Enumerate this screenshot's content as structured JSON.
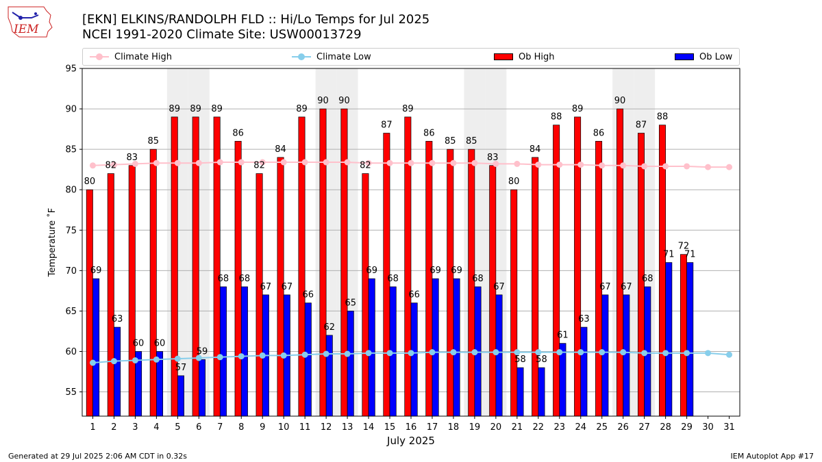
{
  "logo": {
    "icon": "iem-logo-icon",
    "text": "IEM",
    "color": "#cc2222"
  },
  "title": "[EKN] ELKINS/RANDOLPH FLD :: Hi/Lo Temps for Jul 2025",
  "subtitle": "NCEI 1991-2020 Climate Site: USW00013729",
  "legend": {
    "climate_high": "Climate High",
    "climate_low": "Climate Low",
    "ob_high": "Ob High",
    "ob_low": "Ob Low"
  },
  "footer": {
    "left": "Generated at 29 Jul 2025 2:06 AM CDT in 0.32s",
    "right": "IEM Autoplot App #17"
  },
  "chart_data": {
    "type": "bar",
    "title": "[EKN] ELKINS/RANDOLPH FLD :: Hi/Lo Temps for Jul 2025",
    "subtitle": "NCEI 1991-2020 Climate Site: USW00013729",
    "xlabel": "July 2025",
    "ylabel": "Temperature ˚F",
    "ylim": [
      52,
      95
    ],
    "yticks": [
      55,
      60,
      65,
      70,
      75,
      80,
      85,
      90,
      95
    ],
    "grid": "horizontal",
    "legend_position": "top",
    "categories": [
      "1",
      "2",
      "3",
      "4",
      "5",
      "6",
      "7",
      "8",
      "9",
      "10",
      "11",
      "12",
      "13",
      "14",
      "15",
      "16",
      "17",
      "18",
      "19",
      "20",
      "21",
      "22",
      "23",
      "24",
      "25",
      "26",
      "27",
      "28",
      "29",
      "30",
      "31"
    ],
    "weekend_days": [
      5,
      6,
      12,
      13,
      19,
      20,
      26,
      27
    ],
    "series": [
      {
        "name": "Ob High",
        "kind": "bar",
        "color": "#ff0000",
        "values": [
          80,
          82,
          83,
          85,
          89,
          89,
          89,
          86,
          82,
          84,
          89,
          90,
          90,
          82,
          87,
          89,
          86,
          85,
          85,
          83,
          80,
          84,
          88,
          89,
          86,
          90,
          87,
          88,
          72,
          null,
          null
        ]
      },
      {
        "name": "Ob Low",
        "kind": "bar",
        "color": "#0000ff",
        "values": [
          69,
          63,
          60,
          60,
          57,
          59,
          68,
          68,
          67,
          67,
          66,
          62,
          65,
          69,
          68,
          66,
          69,
          69,
          68,
          67,
          58,
          58,
          61,
          63,
          67,
          67,
          68,
          71,
          71,
          null,
          null
        ]
      },
      {
        "name": "Climate High",
        "kind": "line",
        "color": "#ffc0cb",
        "values": [
          83.0,
          83.1,
          83.2,
          83.3,
          83.3,
          83.3,
          83.4,
          83.4,
          83.4,
          83.4,
          83.4,
          83.4,
          83.4,
          83.3,
          83.3,
          83.3,
          83.3,
          83.3,
          83.3,
          83.2,
          83.2,
          83.1,
          83.1,
          83.1,
          83.0,
          83.0,
          82.9,
          82.9,
          82.9,
          82.8,
          82.8
        ]
      },
      {
        "name": "Climate Low",
        "kind": "line",
        "color": "#87ceeb",
        "values": [
          58.6,
          58.8,
          58.9,
          59.0,
          59.1,
          59.2,
          59.3,
          59.4,
          59.5,
          59.5,
          59.6,
          59.7,
          59.7,
          59.8,
          59.8,
          59.8,
          59.9,
          59.9,
          59.9,
          59.9,
          59.9,
          59.9,
          59.9,
          59.9,
          59.9,
          59.9,
          59.8,
          59.8,
          59.8,
          59.8,
          59.6
        ]
      }
    ]
  }
}
